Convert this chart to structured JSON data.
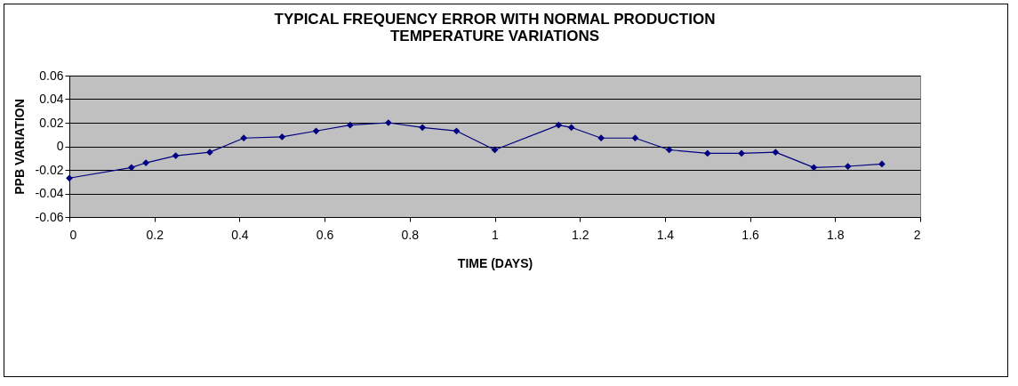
{
  "chart_data": {
    "type": "line",
    "title": [
      "TYPICAL FREQUENCY ERROR WITH NORMAL PRODUCTION",
      "TEMPERATURE VARIATIONS"
    ],
    "xlabel": "TIME (DAYS)",
    "ylabel": "PPB VARIATION",
    "x": [
      0,
      0.146,
      0.18,
      0.25,
      0.33,
      0.41,
      0.5,
      0.58,
      0.66,
      0.75,
      0.83,
      0.91,
      1.0,
      1.15,
      1.18,
      1.25,
      1.33,
      1.41,
      1.5,
      1.58,
      1.66,
      1.75,
      1.83,
      1.91
    ],
    "series": [
      {
        "color": "#000080",
        "values": [
          -0.027,
          -0.018,
          -0.014,
          -0.008,
          -0.005,
          0.007,
          0.008,
          0.013,
          0.018,
          0.02,
          0.016,
          0.013,
          -0.003,
          0.018,
          0.016,
          0.007,
          0.007,
          -0.003,
          -0.006,
          -0.006,
          -0.005,
          -0.018,
          -0.017,
          -0.015
        ]
      }
    ],
    "xlim": [
      0,
      2
    ],
    "xticks": [
      0,
      0.2,
      0.4,
      0.6,
      0.8,
      1,
      1.2,
      1.4,
      1.6,
      1.8,
      2
    ],
    "ylim": [
      -0.06,
      0.06
    ],
    "yticks": [
      -0.06,
      -0.04,
      -0.02,
      0,
      0.02,
      0.04,
      0.06
    ],
    "grid": "y",
    "marker": "diamond",
    "line_style": "solid"
  }
}
